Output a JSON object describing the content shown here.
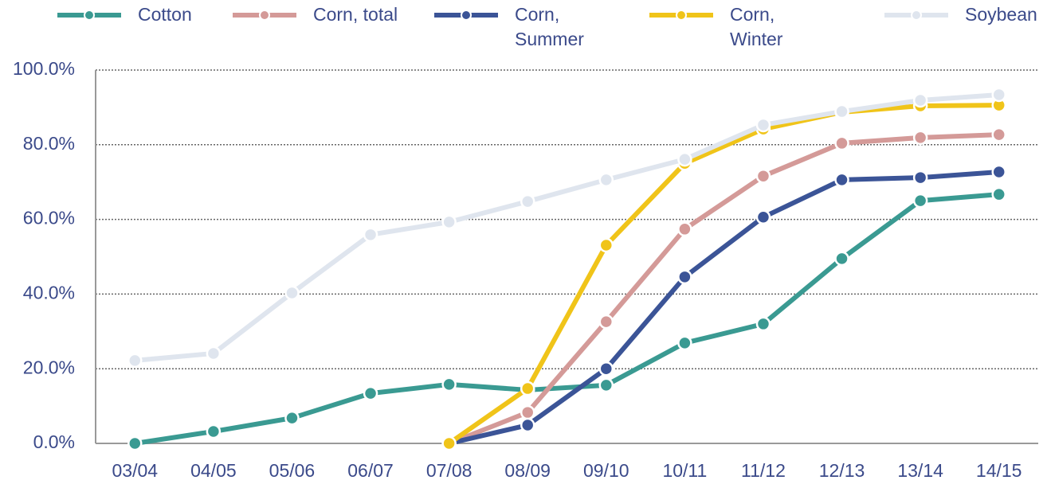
{
  "chart_data": {
    "type": "line",
    "categories": [
      "03/04",
      "04/05",
      "05/06",
      "06/07",
      "07/08",
      "08/09",
      "09/10",
      "10/11",
      "11/12",
      "12/13",
      "13/14",
      "14/15"
    ],
    "series": [
      {
        "name": "Cotton",
        "color": "#3a9a92",
        "values": [
          0,
          3.2,
          6.8,
          13.4,
          15.8,
          14.3,
          15.6,
          26.9,
          32.0,
          49.5,
          65.0,
          66.7
        ]
      },
      {
        "name": "Corn, total",
        "color": "#d49a98",
        "values": [
          null,
          null,
          null,
          null,
          0,
          8.3,
          32.6,
          57.4,
          71.6,
          80.4,
          81.9,
          82.7
        ]
      },
      {
        "name": "Corn, Summer",
        "color": "#3b5497",
        "values": [
          null,
          null,
          null,
          null,
          0,
          4.9,
          20.0,
          44.6,
          60.6,
          70.6,
          71.2,
          72.7
        ]
      },
      {
        "name": "Corn, Winter",
        "color": "#f0c419",
        "values": [
          null,
          null,
          null,
          null,
          0,
          14.7,
          53.1,
          75.0,
          84.2,
          88.7,
          90.4,
          90.6
        ]
      },
      {
        "name": "Soybean",
        "color": "#dfe5ee",
        "values": [
          22.2,
          24.1,
          40.3,
          55.9,
          59.3,
          64.8,
          70.6,
          76.1,
          85.3,
          88.9,
          91.9,
          93.4
        ]
      }
    ],
    "ylim": [
      0,
      100
    ],
    "yticks": [
      {
        "value": 0,
        "label": "0.0%"
      },
      {
        "value": 20,
        "label": "20.0%"
      },
      {
        "value": 40,
        "label": "40.0%"
      },
      {
        "value": 60,
        "label": "60.0%"
      },
      {
        "value": 80,
        "label": "80.0%"
      },
      {
        "value": 100,
        "label": "100.0%"
      }
    ],
    "grid": true,
    "legend": "top"
  }
}
